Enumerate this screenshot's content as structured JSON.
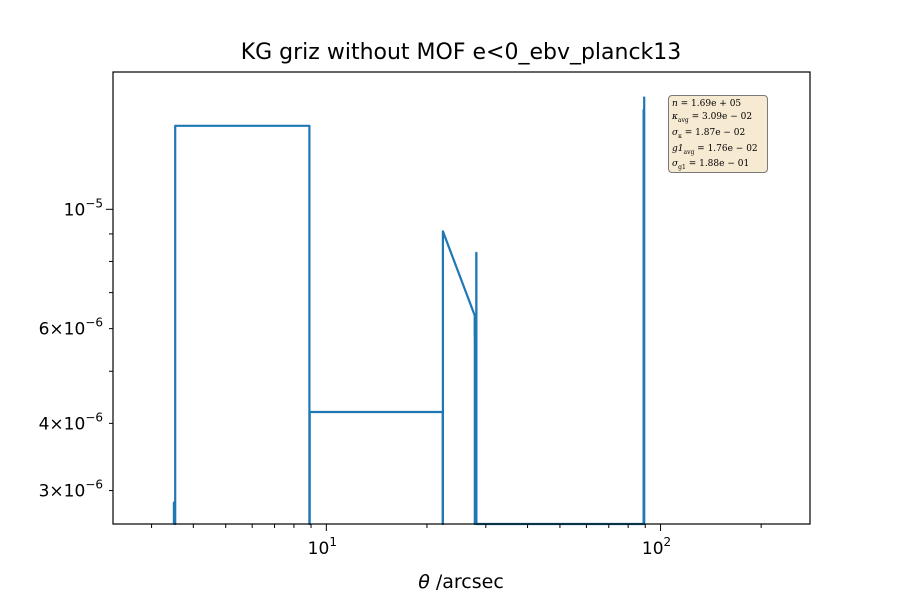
{
  "chart_data": {
    "type": "line",
    "title": "KG griz without MOF e<0_ebv_planck13",
    "xlabel_symbol": "θ",
    "xlabel_text": " /arcsec",
    "ylabel": "",
    "xscale": "log",
    "yscale": "log",
    "xlim": [
      2.3,
      280
    ],
    "ylim": [
      2.6e-06,
      1.8e-05
    ],
    "grid": false,
    "x_ticks": [
      {
        "value": 10,
        "base": "10",
        "exp": "1"
      },
      {
        "value": 100,
        "base": "10",
        "exp": "2"
      }
    ],
    "y_ticks": [
      {
        "value": 3e-06,
        "mant": "3",
        "exp": "−6"
      },
      {
        "value": 4e-06,
        "mant": "4",
        "exp": "−6"
      },
      {
        "value": 6e-06,
        "mant": "6",
        "exp": "−6"
      },
      {
        "value": 1e-05,
        "mant": "",
        "exp": "−5"
      }
    ],
    "series": [
      {
        "color": "#1f77b4",
        "x": [
          3.5,
          3.5,
          3.52,
          3.52,
          3.53,
          3.53,
          8.9,
          8.9,
          8.92,
          8.92,
          22.3,
          22.3,
          22.33,
          22.33,
          27.8,
          27.8,
          27.82,
          27.82,
          28.1,
          28.1,
          28.12,
          28.12,
          89.0,
          89.0,
          89.3,
          89.3,
          89.35,
          89.35
        ],
        "y": [
          2.6e-06,
          2.85e-06,
          2.85e-06,
          2.6e-06,
          2.6e-06,
          1.43e-05,
          1.43e-05,
          2.6e-06,
          2.6e-06,
          4.2e-06,
          4.2e-06,
          2.6e-06,
          2.6e-06,
          9.1e-06,
          6.35e-06,
          5.8e-06,
          5.8e-06,
          2.6e-06,
          3.4e-06,
          8.3e-06,
          8.3e-06,
          2.6e-06,
          2.6e-06,
          1.53e-05,
          1.53e-05,
          2.6e-06,
          2.6e-06,
          1.62e-05
        ]
      }
    ],
    "stats_legend": {
      "placement": "top-right",
      "lines": [
        {
          "sym": "n",
          "sub": "",
          "eq": " = 1.69e + 05"
        },
        {
          "sym": "κ",
          "sub": "avg",
          "eq": " = 3.09e − 02"
        },
        {
          "sym": "σ",
          "sub": "κ",
          "eq": " = 1.87e − 02"
        },
        {
          "sym": "g1",
          "sub": "avg",
          "eq": " = 1.76e − 02"
        },
        {
          "sym": "σ",
          "sub": "g1",
          "eq": " = 1.88e − 01"
        }
      ]
    }
  }
}
